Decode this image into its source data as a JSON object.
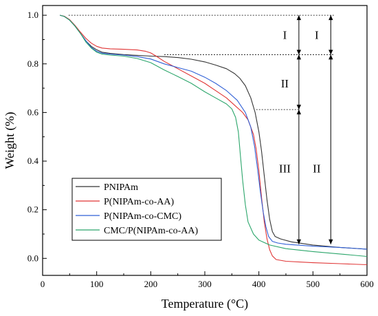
{
  "chart_data": {
    "type": "line",
    "xlabel": "Temperature (°C)",
    "ylabel": "Weight (%)",
    "xlim": [
      0,
      600
    ],
    "ylim": [
      -0.07,
      1.04
    ],
    "xticks": [
      0,
      100,
      200,
      300,
      400,
      500,
      600
    ],
    "xtick_labels": [
      "0",
      "100",
      "200",
      "300",
      "400",
      "500",
      "600"
    ],
    "yticks": [
      0.0,
      0.2,
      0.4,
      0.6,
      0.8,
      1.0
    ],
    "ytick_labels": [
      "0.0",
      "0.2",
      "0.4",
      "0.6",
      "0.8",
      "1.0"
    ],
    "grid": false,
    "legend_position": "bottom-left",
    "series": [
      {
        "name": "PNIPAm",
        "color": "#333333",
        "dashed": false,
        "points": [
          [
            32,
            1.0
          ],
          [
            40,
            0.995
          ],
          [
            50,
            0.98
          ],
          [
            60,
            0.955
          ],
          [
            70,
            0.925
          ],
          [
            80,
            0.895
          ],
          [
            90,
            0.872
          ],
          [
            100,
            0.858
          ],
          [
            110,
            0.848
          ],
          [
            125,
            0.843
          ],
          [
            150,
            0.838
          ],
          [
            175,
            0.835
          ],
          [
            200,
            0.832
          ],
          [
            225,
            0.83
          ],
          [
            250,
            0.826
          ],
          [
            275,
            0.819
          ],
          [
            300,
            0.808
          ],
          [
            320,
            0.795
          ],
          [
            340,
            0.78
          ],
          [
            355,
            0.76
          ],
          [
            365,
            0.74
          ],
          [
            375,
            0.71
          ],
          [
            385,
            0.66
          ],
          [
            393,
            0.6
          ],
          [
            400,
            0.52
          ],
          [
            405,
            0.44
          ],
          [
            410,
            0.34
          ],
          [
            415,
            0.24
          ],
          [
            420,
            0.16
          ],
          [
            425,
            0.11
          ],
          [
            430,
            0.09
          ],
          [
            440,
            0.08
          ],
          [
            460,
            0.068
          ],
          [
            500,
            0.055
          ],
          [
            550,
            0.045
          ],
          [
            600,
            0.038
          ]
        ]
      },
      {
        "name": "P(NIPAm-co-AA)",
        "color": "#e03434",
        "dashed": false,
        "points": [
          [
            32,
            1.0
          ],
          [
            40,
            0.996
          ],
          [
            50,
            0.982
          ],
          [
            60,
            0.958
          ],
          [
            70,
            0.93
          ],
          [
            80,
            0.905
          ],
          [
            90,
            0.885
          ],
          [
            100,
            0.872
          ],
          [
            110,
            0.865
          ],
          [
            125,
            0.862
          ],
          [
            150,
            0.86
          ],
          [
            175,
            0.857
          ],
          [
            190,
            0.852
          ],
          [
            200,
            0.845
          ],
          [
            210,
            0.832
          ],
          [
            225,
            0.81
          ],
          [
            250,
            0.78
          ],
          [
            275,
            0.75
          ],
          [
            300,
            0.72
          ],
          [
            320,
            0.69
          ],
          [
            340,
            0.66
          ],
          [
            355,
            0.63
          ],
          [
            370,
            0.6
          ],
          [
            380,
            0.57
          ],
          [
            390,
            0.51
          ],
          [
            395,
            0.45
          ],
          [
            400,
            0.36
          ],
          [
            405,
            0.25
          ],
          [
            410,
            0.15
          ],
          [
            415,
            0.08
          ],
          [
            420,
            0.035
          ],
          [
            425,
            0.01
          ],
          [
            432,
            -0.005
          ],
          [
            450,
            -0.012
          ],
          [
            500,
            -0.018
          ],
          [
            550,
            -0.022
          ],
          [
            600,
            -0.026
          ]
        ]
      },
      {
        "name": "P(NIPAm-co-CMC)",
        "color": "#2f5fd6",
        "dashed": false,
        "points": [
          [
            32,
            1.0
          ],
          [
            40,
            0.995
          ],
          [
            50,
            0.98
          ],
          [
            60,
            0.955
          ],
          [
            70,
            0.925
          ],
          [
            80,
            0.895
          ],
          [
            90,
            0.868
          ],
          [
            100,
            0.852
          ],
          [
            110,
            0.844
          ],
          [
            125,
            0.84
          ],
          [
            150,
            0.836
          ],
          [
            175,
            0.83
          ],
          [
            200,
            0.82
          ],
          [
            225,
            0.8
          ],
          [
            250,
            0.785
          ],
          [
            275,
            0.77
          ],
          [
            300,
            0.745
          ],
          [
            320,
            0.72
          ],
          [
            340,
            0.69
          ],
          [
            360,
            0.65
          ],
          [
            375,
            0.6
          ],
          [
            385,
            0.54
          ],
          [
            392,
            0.46
          ],
          [
            398,
            0.36
          ],
          [
            403,
            0.27
          ],
          [
            408,
            0.19
          ],
          [
            413,
            0.13
          ],
          [
            418,
            0.09
          ],
          [
            425,
            0.07
          ],
          [
            435,
            0.063
          ],
          [
            450,
            0.058
          ],
          [
            500,
            0.05
          ],
          [
            550,
            0.045
          ],
          [
            600,
            0.038
          ]
        ]
      },
      {
        "name": "CMC/P(NIPAm-co-AA)",
        "color": "#2aa56a",
        "dashed": false,
        "points": [
          [
            32,
            1.0
          ],
          [
            40,
            0.995
          ],
          [
            50,
            0.98
          ],
          [
            60,
            0.955
          ],
          [
            70,
            0.925
          ],
          [
            80,
            0.89
          ],
          [
            90,
            0.865
          ],
          [
            100,
            0.848
          ],
          [
            110,
            0.84
          ],
          [
            125,
            0.836
          ],
          [
            150,
            0.832
          ],
          [
            175,
            0.822
          ],
          [
            200,
            0.805
          ],
          [
            225,
            0.775
          ],
          [
            250,
            0.748
          ],
          [
            275,
            0.72
          ],
          [
            300,
            0.685
          ],
          [
            320,
            0.66
          ],
          [
            340,
            0.635
          ],
          [
            350,
            0.615
          ],
          [
            357,
            0.58
          ],
          [
            362,
            0.52
          ],
          [
            366,
            0.42
          ],
          [
            370,
            0.32
          ],
          [
            375,
            0.22
          ],
          [
            380,
            0.15
          ],
          [
            390,
            0.1
          ],
          [
            400,
            0.075
          ],
          [
            420,
            0.055
          ],
          [
            450,
            0.04
          ],
          [
            500,
            0.028
          ],
          [
            550,
            0.018
          ],
          [
            600,
            0.008
          ]
        ]
      }
    ],
    "reference_lines": [
      {
        "style": "dotted",
        "from": [
          48,
          1.0
        ],
        "to": [
          540,
          1.0
        ]
      },
      {
        "style": "dotted",
        "from": [
          225,
          0.838
        ],
        "to": [
          540,
          0.838
        ]
      },
      {
        "style": "dotted",
        "from": [
          395,
          0.612
        ],
        "to": [
          474,
          0.612
        ]
      }
    ],
    "arrows": [
      {
        "x": 474,
        "from": 1.0,
        "to": 0.838
      },
      {
        "x": 474,
        "from": 0.838,
        "to": 0.612
      },
      {
        "x": 474,
        "from": 0.612,
        "to": 0.058
      },
      {
        "x": 533,
        "from": 1.0,
        "to": 0.838
      },
      {
        "x": 533,
        "from": 0.838,
        "to": 0.058
      }
    ],
    "stage_labels": [
      {
        "text": "I",
        "x": 448,
        "y": 0.92
      },
      {
        "text": "II",
        "x": 448,
        "y": 0.72
      },
      {
        "text": "III",
        "x": 448,
        "y": 0.37
      },
      {
        "text": "I",
        "x": 507,
        "y": 0.92
      },
      {
        "text": "II",
        "x": 507,
        "y": 0.37
      }
    ]
  }
}
